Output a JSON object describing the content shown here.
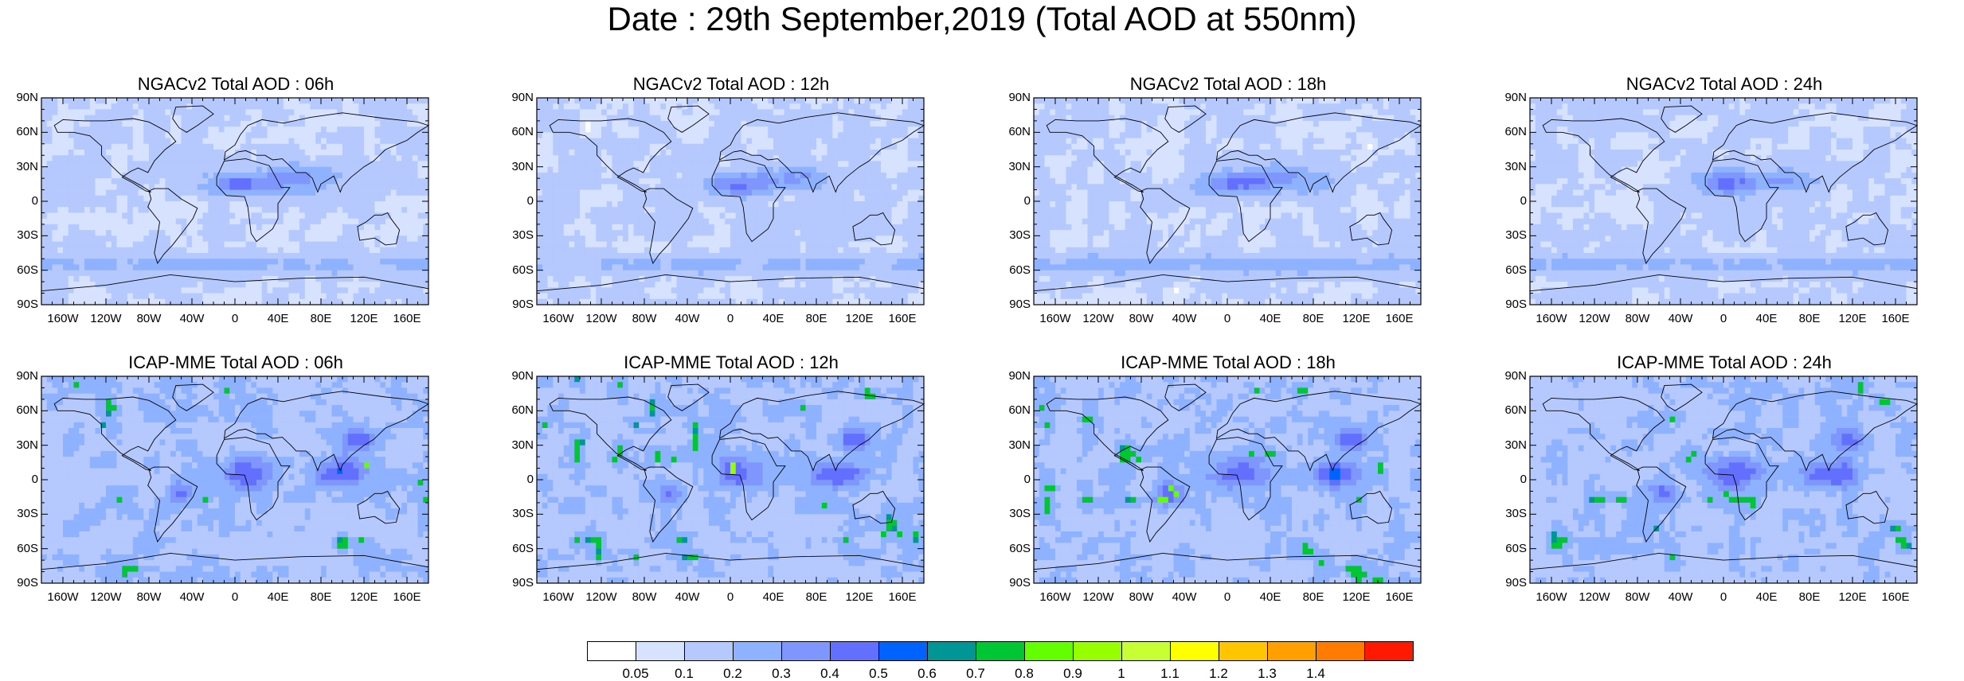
{
  "title": "Date : 29th September,2019 (Total AOD at 550nm)",
  "panels": [
    {
      "title": "NGACv2 Total AOD : 06h",
      "model": "ngac"
    },
    {
      "title": "NGACv2 Total AOD : 12h",
      "model": "ngac"
    },
    {
      "title": "NGACv2 Total AOD : 18h",
      "model": "ngac"
    },
    {
      "title": "NGACv2 Total AOD : 24h",
      "model": "ngac"
    },
    {
      "title": "ICAP-MME Total AOD : 06h",
      "model": "icap"
    },
    {
      "title": "ICAP-MME Total AOD : 12h",
      "model": "icap"
    },
    {
      "title": "ICAP-MME Total AOD : 18h",
      "model": "icap"
    },
    {
      "title": "ICAP-MME Total AOD : 24h",
      "model": "icap"
    }
  ],
  "lat_labels": [
    "90N",
    "60N",
    "30N",
    "0",
    "30S",
    "60S",
    "90S"
  ],
  "lon_labels": [
    "160W",
    "120W",
    "80W",
    "40W",
    "0",
    "40E",
    "80E",
    "120E",
    "160E"
  ],
  "colorbar": {
    "colors": [
      "#ffffff",
      "#d6e2ff",
      "#b5c9ff",
      "#8eb2ff",
      "#7f96ff",
      "#6370ff",
      "#0063ff",
      "#009696",
      "#00c633",
      "#63ff00",
      "#96ff00",
      "#c6ff33",
      "#ffff00",
      "#ffc600",
      "#ffa000",
      "#ff7c00",
      "#ff1900"
    ],
    "labels": [
      "0.05",
      "0.1",
      "0.2",
      "0.3",
      "0.4",
      "0.5",
      "0.6",
      "0.7",
      "0.8",
      "0.9",
      "1",
      "1.1",
      "1.2",
      "1.3",
      "1.4"
    ]
  }
}
